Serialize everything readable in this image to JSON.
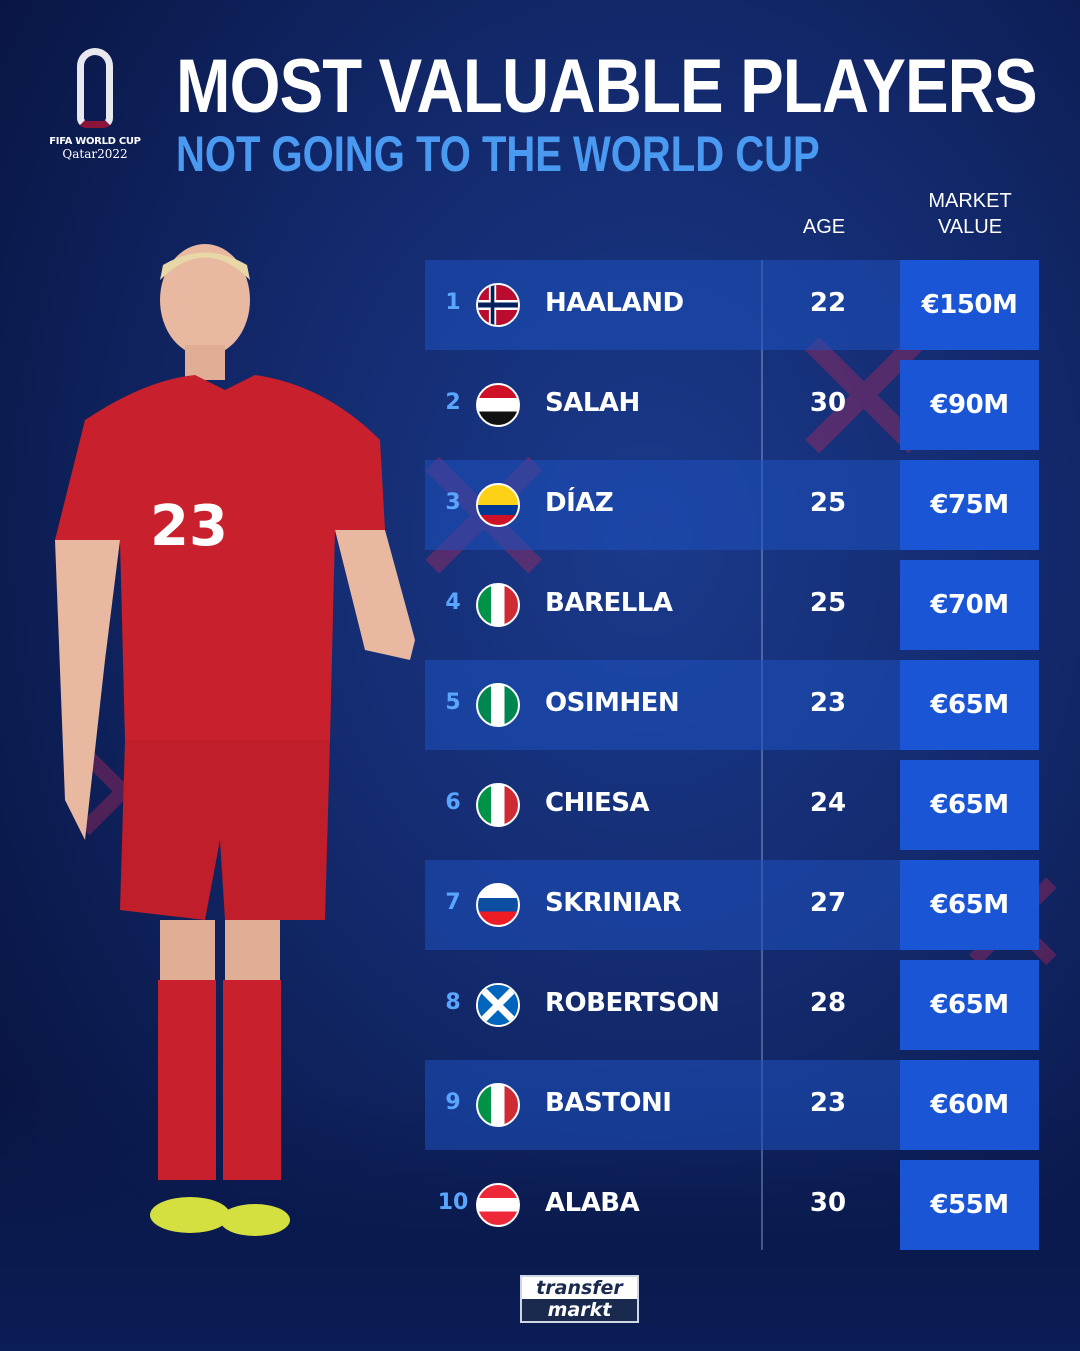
{
  "header": {
    "title": "MOST VALUABLE PLAYERS",
    "subtitle": "NOT GOING TO THE WORLD CUP"
  },
  "logo": {
    "line1": "FIFA WORLD CUP",
    "line2": "Qatar2022"
  },
  "columns": {
    "age": "AGE",
    "market_value_1": "MARKET",
    "market_value_2": "VALUE"
  },
  "accent_colors": {
    "subtitle": "#4a9af2",
    "value_box": "#1a55d6",
    "rank": "#5aa6ff"
  },
  "players": [
    {
      "rank": "1",
      "flag": "norway",
      "name": "HAALAND",
      "age": "22",
      "value": "€150M"
    },
    {
      "rank": "2",
      "flag": "egypt",
      "name": "SALAH",
      "age": "30",
      "value": "€90M"
    },
    {
      "rank": "3",
      "flag": "colombia",
      "name": "DÍAZ",
      "age": "25",
      "value": "€75M"
    },
    {
      "rank": "4",
      "flag": "italy",
      "name": "BARELLA",
      "age": "25",
      "value": "€70M"
    },
    {
      "rank": "5",
      "flag": "nigeria",
      "name": "OSIMHEN",
      "age": "23",
      "value": "€65M"
    },
    {
      "rank": "6",
      "flag": "italy",
      "name": "CHIESA",
      "age": "24",
      "value": "€65M"
    },
    {
      "rank": "7",
      "flag": "slovakia",
      "name": "SKRINIAR",
      "age": "27",
      "value": "€65M"
    },
    {
      "rank": "8",
      "flag": "scotland",
      "name": "ROBERTSON",
      "age": "28",
      "value": "€65M"
    },
    {
      "rank": "9",
      "flag": "italy",
      "name": "BASTONI",
      "age": "23",
      "value": "€60M"
    },
    {
      "rank": "10",
      "flag": "austria",
      "name": "ALABA",
      "age": "30",
      "value": "€55M"
    }
  ],
  "footer": {
    "brand_line1": "transfer",
    "brand_line2": "markt"
  },
  "jersey_number": "23"
}
